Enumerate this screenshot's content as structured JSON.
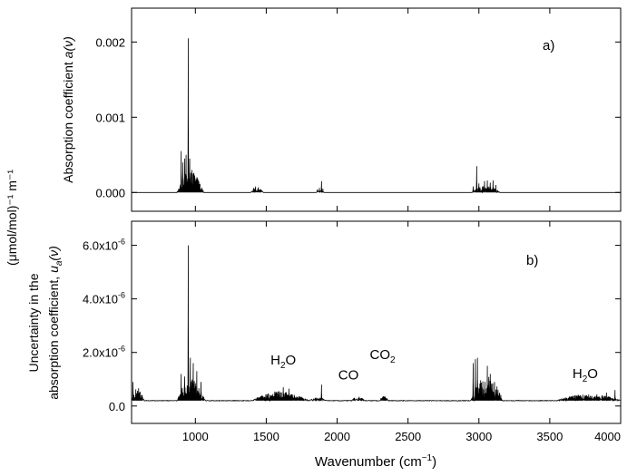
{
  "shared": {
    "y_unit_label": "(μmol/mol)⁻¹ m⁻¹",
    "xlabel_base": "Wavenumber (cm",
    "xlabel_sup": "−1",
    "xlabel_end": ")",
    "xlim": [
      550,
      4000
    ],
    "xticks": [
      1000,
      1500,
      2000,
      2500,
      3000,
      3500,
      4000
    ],
    "xtick_labels": [
      "1000",
      "1500",
      "2000",
      "2500",
      "3000",
      "3500",
      "4000"
    ]
  },
  "chart_data": [
    {
      "type": "line",
      "panel_label": "a)",
      "ylabel_text": "Absorption coefficient ",
      "ylabel_symbol": "a(ν)",
      "ylim": [
        -0.00025,
        0.00245
      ],
      "yticks": [
        0.0,
        0.001,
        0.002
      ],
      "ytick_labels": [
        "0.000",
        "0.001",
        "0.002"
      ],
      "baseline": 0.0,
      "peaks": [
        {
          "x": 900,
          "y": 0.00055
        },
        {
          "x": 912,
          "y": 0.0004
        },
        {
          "x": 925,
          "y": 0.00045
        },
        {
          "x": 935,
          "y": 0.0005
        },
        {
          "x": 949,
          "y": 0.00205
        },
        {
          "x": 960,
          "y": 0.00045
        },
        {
          "x": 975,
          "y": 0.0003
        },
        {
          "x": 990,
          "y": 0.00025
        },
        {
          "x": 1010,
          "y": 0.0002
        },
        {
          "x": 1030,
          "y": 0.0001
        },
        {
          "x": 1410,
          "y": 6e-05
        },
        {
          "x": 1425,
          "y": 8e-05
        },
        {
          "x": 1445,
          "y": 7e-05
        },
        {
          "x": 1460,
          "y": 4e-05
        },
        {
          "x": 1860,
          "y": 4e-05
        },
        {
          "x": 1875,
          "y": 6e-05
        },
        {
          "x": 1889,
          "y": 0.00015
        },
        {
          "x": 1900,
          "y": 5e-05
        },
        {
          "x": 2960,
          "y": 8e-05
        },
        {
          "x": 2985,
          "y": 0.00035
        },
        {
          "x": 3000,
          "y": 0.00012
        },
        {
          "x": 3040,
          "y": 0.00015
        },
        {
          "x": 3060,
          "y": 0.00016
        },
        {
          "x": 3080,
          "y": 0.00013
        },
        {
          "x": 3100,
          "y": 0.00016
        },
        {
          "x": 3120,
          "y": 0.0001
        }
      ],
      "bands": [
        {
          "x0": 870,
          "x1": 1060,
          "amp": 0.00028
        },
        {
          "x0": 1390,
          "x1": 1480,
          "amp": 6e-05
        },
        {
          "x0": 1850,
          "x1": 1910,
          "amp": 3e-05
        },
        {
          "x0": 2950,
          "x1": 3150,
          "amp": 9e-05
        }
      ]
    },
    {
      "type": "line",
      "panel_label": "b)",
      "ylabel_line1": "Uncertainty in the",
      "ylabel_line2": "absorption coefficient, ",
      "ylabel_symbol": "u",
      "ylabel_sub": "a",
      "ylabel_tail": "(ν)",
      "ylim": [
        -6.5e-07,
        6.9e-06
      ],
      "yticks": [
        0.0,
        2e-06,
        4e-06,
        6e-06
      ],
      "ytick_labels": [
        "0.0",
        "2.0x10",
        "4.0x10",
        "6.0x10"
      ],
      "ytick_exponent": "-6",
      "baseline": 2e-07,
      "annotations": [
        {
          "base": "H",
          "sub": "2",
          "tail": "O",
          "x": 1620,
          "y": 1.55e-06
        },
        {
          "base": "CO",
          "sub": "",
          "tail": "",
          "x": 2080,
          "y": 1e-06
        },
        {
          "base": "CO",
          "sub": "2",
          "tail": "",
          "x": 2320,
          "y": 1.75e-06
        },
        {
          "base": "H",
          "sub": "2",
          "tail": "O",
          "x": 3750,
          "y": 1.05e-06
        }
      ],
      "peaks": [
        {
          "x": 560,
          "y": 9e-07
        },
        {
          "x": 900,
          "y": 1.2e-06
        },
        {
          "x": 925,
          "y": 1.1e-06
        },
        {
          "x": 949,
          "y": 6e-06
        },
        {
          "x": 965,
          "y": 1.8e-06
        },
        {
          "x": 985,
          "y": 1.6e-06
        },
        {
          "x": 1010,
          "y": 1.3e-06
        },
        {
          "x": 1040,
          "y": 9e-07
        },
        {
          "x": 1620,
          "y": 7e-07
        },
        {
          "x": 1660,
          "y": 6.5e-07
        },
        {
          "x": 1889,
          "y": 8e-07
        },
        {
          "x": 2960,
          "y": 1.6e-06
        },
        {
          "x": 2975,
          "y": 1.75e-06
        },
        {
          "x": 2990,
          "y": 1.8e-06
        },
        {
          "x": 3060,
          "y": 1.5e-06
        },
        {
          "x": 3080,
          "y": 1.2e-06
        },
        {
          "x": 3110,
          "y": 9e-07
        },
        {
          "x": 3900,
          "y": 5e-07
        },
        {
          "x": 3960,
          "y": 6e-07
        }
      ],
      "bands": [
        {
          "x0": 550,
          "x1": 640,
          "amp": 5e-07
        },
        {
          "x0": 870,
          "x1": 1070,
          "amp": 8e-07
        },
        {
          "x0": 1400,
          "x1": 1800,
          "amp": 3.5e-07
        },
        {
          "x0": 1800,
          "x1": 1930,
          "amp": 1.2e-07
        },
        {
          "x0": 2100,
          "x1": 2200,
          "amp": 1.5e-07
        },
        {
          "x0": 2300,
          "x1": 2360,
          "amp": 2e-07
        },
        {
          "x0": 2940,
          "x1": 3170,
          "amp": 9e-07
        },
        {
          "x0": 3550,
          "x1": 4000,
          "amp": 2.5e-07
        }
      ]
    }
  ]
}
